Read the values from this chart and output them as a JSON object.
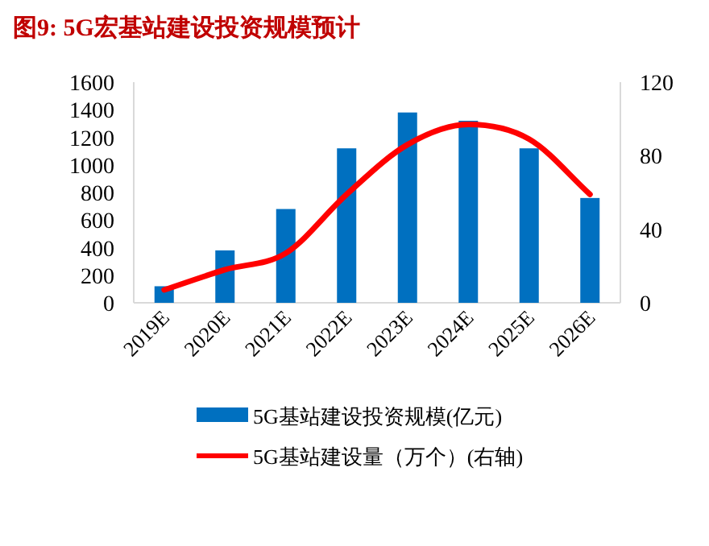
{
  "chart_data": {
    "type": "bar",
    "title": "图9:   5G宏基站建设投资规模预计",
    "categories": [
      "2019E",
      "2020E",
      "2021E",
      "2022E",
      "2023E",
      "2024E",
      "2025E",
      "2026E"
    ],
    "series": [
      {
        "name": "5G基站建设投资规模(亿元)",
        "color": "#0070c0",
        "values": [
          120,
          380,
          680,
          1120,
          1380,
          1320,
          1120,
          760
        ]
      },
      {
        "name": "5G基站建设量（万个）(右轴)",
        "color": "#ff0000",
        "type": "line",
        "axis": "y2",
        "values": [
          7,
          18,
          27,
          59,
          86,
          97,
          89,
          59
        ]
      }
    ],
    "ylim": [
      0,
      1600
    ],
    "yticks": [
      0,
      200,
      400,
      600,
      800,
      1000,
      1200,
      1400,
      1600
    ],
    "y2lim": [
      0,
      120
    ],
    "y2ticks": [
      0,
      40,
      80,
      120
    ],
    "legend": "bottom",
    "marker": "none",
    "line_style": "solid"
  }
}
